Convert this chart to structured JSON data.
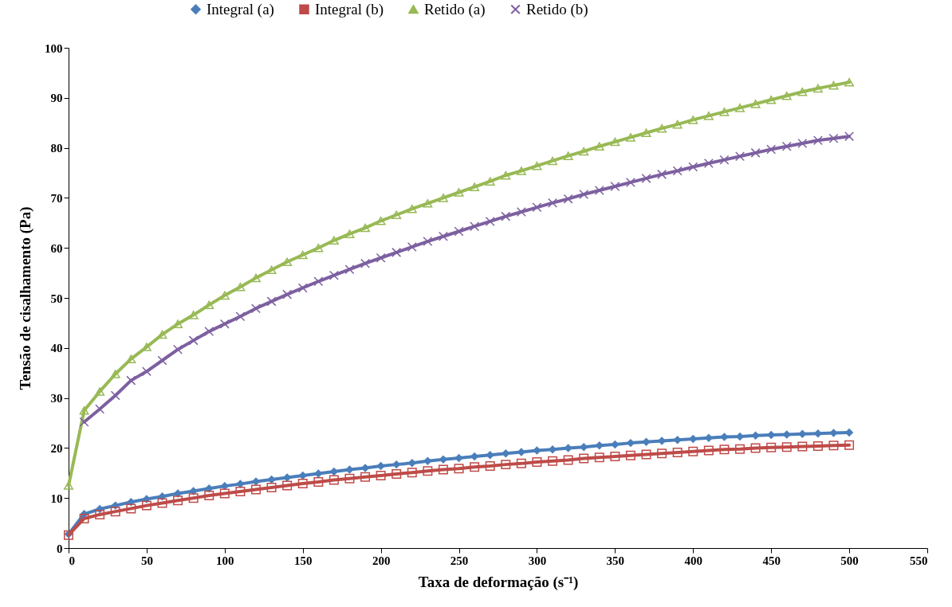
{
  "chart_data": {
    "type": "line",
    "xlabel": "Taxa de deformação (s⁻¹)",
    "ylabel": "Tensão de cisalhamento  (Pa)",
    "legend": "top",
    "x": [
      0,
      10,
      20,
      30,
      40,
      50,
      60,
      70,
      80,
      90,
      100,
      110,
      120,
      130,
      140,
      150,
      160,
      170,
      180,
      190,
      200,
      210,
      220,
      230,
      240,
      250,
      260,
      270,
      280,
      290,
      300,
      310,
      320,
      330,
      340,
      350,
      360,
      370,
      380,
      390,
      400,
      410,
      420,
      430,
      440,
      450,
      460,
      470,
      480,
      490,
      500
    ],
    "xlim": [
      0,
      550
    ],
    "xticks": [
      0,
      50,
      100,
      150,
      200,
      250,
      300,
      350,
      400,
      450,
      500,
      550
    ],
    "ylim": [
      0,
      100
    ],
    "yticks": [
      0,
      10,
      20,
      30,
      40,
      50,
      60,
      70,
      80,
      90,
      100
    ],
    "series": [
      {
        "name": "Integral (a)",
        "color": "#4a7ebb",
        "marker": "diamond",
        "values": [
          2.8,
          6.8,
          7.8,
          8.5,
          9.2,
          9.8,
          10.3,
          10.9,
          11.4,
          11.9,
          12.4,
          12.8,
          13.3,
          13.7,
          14.1,
          14.5,
          14.9,
          15.3,
          15.7,
          16.0,
          16.4,
          16.7,
          17.0,
          17.4,
          17.7,
          18.0,
          18.3,
          18.6,
          18.9,
          19.2,
          19.5,
          19.7,
          20.0,
          20.2,
          20.5,
          20.7,
          21.0,
          21.2,
          21.4,
          21.6,
          21.8,
          22.0,
          22.2,
          22.3,
          22.5,
          22.6,
          22.7,
          22.8,
          22.9,
          23.0,
          23.1
        ]
      },
      {
        "name": "Integral (b)",
        "color": "#be4b48",
        "marker": "square",
        "values": [
          2.6,
          5.9,
          6.7,
          7.3,
          7.9,
          8.5,
          9.0,
          9.5,
          10.0,
          10.5,
          10.9,
          11.3,
          11.7,
          12.1,
          12.5,
          12.9,
          13.2,
          13.6,
          13.9,
          14.2,
          14.5,
          14.8,
          15.1,
          15.4,
          15.7,
          15.9,
          16.2,
          16.4,
          16.7,
          16.9,
          17.2,
          17.4,
          17.6,
          17.9,
          18.1,
          18.3,
          18.5,
          18.7,
          18.9,
          19.1,
          19.3,
          19.5,
          19.7,
          19.8,
          20.0,
          20.1,
          20.2,
          20.3,
          20.4,
          20.5,
          20.6
        ]
      },
      {
        "name": "Retido (a)",
        "color": "#98b954",
        "marker": "triangle",
        "values": [
          12.5,
          27.5,
          31.3,
          34.8,
          37.8,
          40.2,
          42.7,
          44.8,
          46.6,
          48.6,
          50.5,
          52.2,
          54.0,
          55.6,
          57.2,
          58.6,
          60.0,
          61.5,
          62.8,
          64.0,
          65.4,
          66.6,
          67.8,
          68.9,
          70.0,
          71.1,
          72.2,
          73.3,
          74.5,
          75.4,
          76.4,
          77.4,
          78.4,
          79.3,
          80.3,
          81.2,
          82.1,
          83.0,
          83.9,
          84.7,
          85.6,
          86.4,
          87.2,
          88.0,
          88.8,
          89.6,
          90.4,
          91.2,
          91.9,
          92.5,
          93.1
        ]
      },
      {
        "name": "Retido (b)",
        "color": "#7d60a0",
        "marker": "cross",
        "values": [
          null,
          25.2,
          27.8,
          30.5,
          33.5,
          35.3,
          37.5,
          39.7,
          41.5,
          43.3,
          44.8,
          46.3,
          47.9,
          49.3,
          50.7,
          52.0,
          53.3,
          54.5,
          55.7,
          56.9,
          58.0,
          59.1,
          60.2,
          61.3,
          62.3,
          63.3,
          64.3,
          65.3,
          66.3,
          67.2,
          68.1,
          69.0,
          69.8,
          70.7,
          71.5,
          72.3,
          73.1,
          73.9,
          74.7,
          75.4,
          76.2,
          76.9,
          77.6,
          78.3,
          79.0,
          79.7,
          80.3,
          80.9,
          81.5,
          81.9,
          82.3
        ]
      }
    ]
  }
}
